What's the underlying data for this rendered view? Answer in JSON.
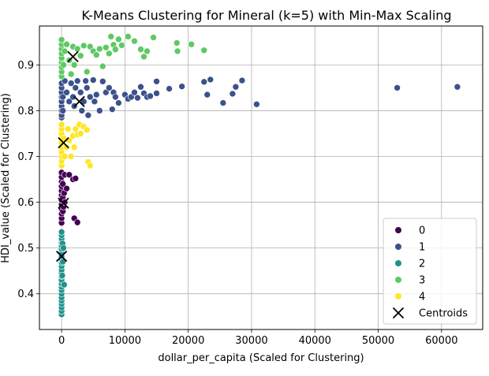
{
  "chart_data": {
    "type": "scatter",
    "title": "K-Means Clustering for Mineral (k=5) with Min-Max Scaling",
    "xlabel": "dollar_per_capita (Scaled for Clustering)",
    "ylabel": "HDI_value (Scaled for Clustering)",
    "xlim": [
      -3500,
      66500
    ],
    "ylim": [
      0.322,
      0.985
    ],
    "xticks": [
      "0",
      "10000",
      "20000",
      "30000",
      "40000",
      "50000",
      "60000"
    ],
    "xtick_values": [
      0,
      10000,
      20000,
      30000,
      40000,
      50000,
      60000
    ],
    "yticks": [
      "0.4",
      "0.5",
      "0.6",
      "0.7",
      "0.8",
      "0.9"
    ],
    "ytick_values": [
      0.4,
      0.5,
      0.6,
      0.7,
      0.8,
      0.9
    ],
    "grid": true,
    "legend_position": "bottom-right",
    "legend_entries": [
      "0",
      "1",
      "2",
      "3",
      "4",
      "Centroids"
    ],
    "colors": {
      "0": "#440154",
      "1": "#3b528b",
      "2": "#21918c",
      "3": "#5ec962",
      "4": "#fde725",
      "centroid": "#000000"
    },
    "clusters": [
      {
        "name": "0",
        "points": [
          [
            0,
            0.555
          ],
          [
            0,
            0.565
          ],
          [
            0,
            0.575
          ],
          [
            0,
            0.585
          ],
          [
            0,
            0.595
          ],
          [
            0,
            0.605
          ],
          [
            0,
            0.615
          ],
          [
            0,
            0.625
          ],
          [
            0,
            0.635
          ],
          [
            0,
            0.645
          ],
          [
            0,
            0.655
          ],
          [
            0,
            0.665
          ],
          [
            200,
            0.58
          ],
          [
            200,
            0.61
          ],
          [
            200,
            0.64
          ],
          [
            300,
            0.59
          ],
          [
            400,
            0.62
          ],
          [
            500,
            0.6
          ],
          [
            500,
            0.66
          ],
          [
            800,
            0.63
          ],
          [
            1200,
            0.66
          ],
          [
            1800,
            0.65
          ],
          [
            2000,
            0.565
          ],
          [
            2200,
            0.652
          ],
          [
            2500,
            0.556
          ]
        ]
      },
      {
        "name": "1",
        "points": [
          [
            0,
            0.785
          ],
          [
            0,
            0.79
          ],
          [
            0,
            0.8
          ],
          [
            0,
            0.81
          ],
          [
            0,
            0.82
          ],
          [
            0,
            0.83
          ],
          [
            0,
            0.84
          ],
          [
            0,
            0.85
          ],
          [
            0,
            0.86
          ],
          [
            200,
            0.8
          ],
          [
            200,
            0.83
          ],
          [
            500,
            0.865
          ],
          [
            800,
            0.84
          ],
          [
            1200,
            0.82
          ],
          [
            1500,
            0.86
          ],
          [
            1800,
            0.83
          ],
          [
            2000,
            0.81
          ],
          [
            2200,
            0.85
          ],
          [
            2500,
            0.865
          ],
          [
            3000,
            0.84
          ],
          [
            3200,
            0.8
          ],
          [
            3500,
            0.82
          ],
          [
            3800,
            0.865
          ],
          [
            4000,
            0.85
          ],
          [
            4200,
            0.79
          ],
          [
            4500,
            0.83
          ],
          [
            5000,
            0.867
          ],
          [
            5200,
            0.82
          ],
          [
            5500,
            0.835
          ],
          [
            6000,
            0.8
          ],
          [
            6500,
            0.864
          ],
          [
            7000,
            0.84
          ],
          [
            7500,
            0.85
          ],
          [
            8000,
            0.803
          ],
          [
            8200,
            0.84
          ],
          [
            8500,
            0.83
          ],
          [
            9000,
            0.817
          ],
          [
            10000,
            0.835
          ],
          [
            10500,
            0.826
          ],
          [
            11000,
            0.83
          ],
          [
            11500,
            0.84
          ],
          [
            12000,
            0.828
          ],
          [
            12500,
            0.852
          ],
          [
            13000,
            0.838
          ],
          [
            13500,
            0.83
          ],
          [
            14000,
            0.832
          ],
          [
            15000,
            0.864
          ],
          [
            15000,
            0.838
          ],
          [
            17000,
            0.848
          ],
          [
            19000,
            0.853
          ],
          [
            22500,
            0.863
          ],
          [
            23000,
            0.835
          ],
          [
            23500,
            0.868
          ],
          [
            25500,
            0.817
          ],
          [
            27000,
            0.837
          ],
          [
            27500,
            0.852
          ],
          [
            28500,
            0.866
          ],
          [
            30800,
            0.814
          ],
          [
            53000,
            0.85
          ],
          [
            62500,
            0.852
          ]
        ]
      },
      {
        "name": "2",
        "points": [
          [
            0,
            0.355
          ],
          [
            0,
            0.362
          ],
          [
            0,
            0.37
          ],
          [
            0,
            0.378
          ],
          [
            0,
            0.385
          ],
          [
            0,
            0.392
          ],
          [
            0,
            0.4
          ],
          [
            0,
            0.408
          ],
          [
            0,
            0.415
          ],
          [
            0,
            0.422
          ],
          [
            0,
            0.43
          ],
          [
            0,
            0.438
          ],
          [
            0,
            0.445
          ],
          [
            0,
            0.452
          ],
          [
            0,
            0.46
          ],
          [
            0,
            0.468
          ],
          [
            0,
            0.475
          ],
          [
            0,
            0.482
          ],
          [
            0,
            0.49
          ],
          [
            0,
            0.498
          ],
          [
            0,
            0.505
          ],
          [
            0,
            0.512
          ],
          [
            0,
            0.52
          ],
          [
            0,
            0.528
          ],
          [
            0,
            0.535
          ],
          [
            100,
            0.44
          ],
          [
            150,
            0.51
          ],
          [
            200,
            0.47
          ],
          [
            300,
            0.5
          ],
          [
            400,
            0.42
          ]
        ]
      },
      {
        "name": "3",
        "points": [
          [
            0,
            0.875
          ],
          [
            0,
            0.885
          ],
          [
            0,
            0.895
          ],
          [
            0,
            0.905
          ],
          [
            0,
            0.915
          ],
          [
            0,
            0.925
          ],
          [
            0,
            0.935
          ],
          [
            0,
            0.945
          ],
          [
            0,
            0.955
          ],
          [
            300,
            0.9
          ],
          [
            500,
            0.93
          ],
          [
            800,
            0.945
          ],
          [
            1200,
            0.91
          ],
          [
            1500,
            0.88
          ],
          [
            1800,
            0.94
          ],
          [
            2000,
            0.9
          ],
          [
            2500,
            0.935
          ],
          [
            3000,
            0.92
          ],
          [
            3500,
            0.942
          ],
          [
            4000,
            0.885
          ],
          [
            4500,
            0.94
          ],
          [
            5000,
            0.93
          ],
          [
            5500,
            0.922
          ],
          [
            6000,
            0.935
          ],
          [
            6500,
            0.897
          ],
          [
            7000,
            0.938
          ],
          [
            7500,
            0.925
          ],
          [
            7800,
            0.962
          ],
          [
            8200,
            0.944
          ],
          [
            8500,
            0.934
          ],
          [
            9000,
            0.956
          ],
          [
            9500,
            0.943
          ],
          [
            10500,
            0.962
          ],
          [
            11500,
            0.952
          ],
          [
            12500,
            0.934
          ],
          [
            13000,
            0.918
          ],
          [
            13500,
            0.93
          ],
          [
            14500,
            0.96
          ],
          [
            18200,
            0.948
          ],
          [
            18300,
            0.93
          ],
          [
            20500,
            0.945
          ],
          [
            22500,
            0.932
          ]
        ]
      },
      {
        "name": "4",
        "points": [
          [
            0,
            0.68
          ],
          [
            0,
            0.69
          ],
          [
            0,
            0.7
          ],
          [
            0,
            0.71
          ],
          [
            0,
            0.72
          ],
          [
            0,
            0.73
          ],
          [
            0,
            0.74
          ],
          [
            0,
            0.75
          ],
          [
            0,
            0.76
          ],
          [
            0,
            0.77
          ],
          [
            300,
            0.74
          ],
          [
            500,
            0.7
          ],
          [
            800,
            0.72
          ],
          [
            1000,
            0.76
          ],
          [
            1200,
            0.735
          ],
          [
            1500,
            0.7
          ],
          [
            1800,
            0.745
          ],
          [
            2000,
            0.72
          ],
          [
            2200,
            0.76
          ],
          [
            2500,
            0.748
          ],
          [
            2800,
            0.77
          ],
          [
            3000,
            0.75
          ],
          [
            3500,
            0.765
          ],
          [
            4000,
            0.758
          ],
          [
            4200,
            0.688
          ],
          [
            4500,
            0.68
          ]
        ]
      }
    ],
    "centroids": [
      [
        300,
        0.598
      ],
      [
        1800,
        0.918
      ],
      [
        2800,
        0.82
      ],
      [
        300,
        0.73
      ],
      [
        0,
        0.482
      ]
    ]
  }
}
